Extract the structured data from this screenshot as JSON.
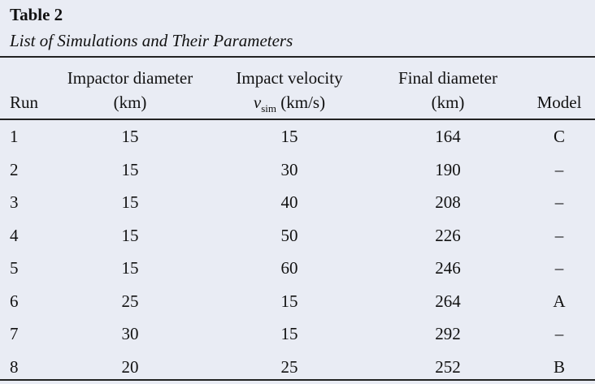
{
  "table": {
    "label": "Table 2",
    "caption": "List of Simulations and Their Parameters",
    "headers": {
      "run": "Run",
      "impactor_line1": "Impactor diameter",
      "impactor_line2": "(km)",
      "velocity_line1": "Impact velocity",
      "velocity_symbol": "v",
      "velocity_sub": "sim",
      "velocity_unit": "(km/s)",
      "final_line1": "Final diameter",
      "final_line2": "(km)",
      "model": "Model"
    },
    "rows": [
      {
        "run": "1",
        "impactor": "15",
        "velocity": "15",
        "final": "164",
        "model": "C"
      },
      {
        "run": "2",
        "impactor": "15",
        "velocity": "30",
        "final": "190",
        "model": "–"
      },
      {
        "run": "3",
        "impactor": "15",
        "velocity": "40",
        "final": "208",
        "model": "–"
      },
      {
        "run": "4",
        "impactor": "15",
        "velocity": "50",
        "final": "226",
        "model": "–"
      },
      {
        "run": "5",
        "impactor": "15",
        "velocity": "60",
        "final": "246",
        "model": "–"
      },
      {
        "run": "6",
        "impactor": "25",
        "velocity": "15",
        "final": "264",
        "model": "A"
      },
      {
        "run": "7",
        "impactor": "30",
        "velocity": "15",
        "final": "292",
        "model": "–"
      },
      {
        "run": "8",
        "impactor": "20",
        "velocity": "25",
        "final": "252",
        "model": "B"
      }
    ]
  }
}
